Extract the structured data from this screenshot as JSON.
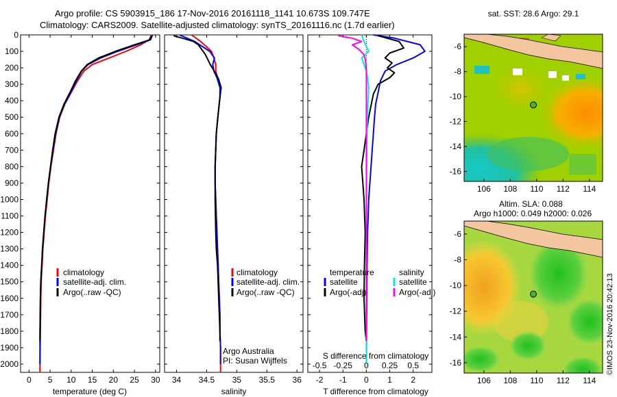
{
  "header": {
    "line1": "Argo profile: CS 5903915_186 17-Nov-2016 20161118_1141 10.673S 109.747E",
    "line2": "Climatology: CARS2009. Satellite-adjusted climatology: synTS_20161116.nc (1.7d earlier)"
  },
  "side_label": "©IMOS 23-Nov-2016 20:42:13",
  "colors": {
    "climatology": "#ff0000",
    "satellite": "#0000ff",
    "argo": "#000000",
    "sat_sal": "#00e5e5",
    "argo_sal": "#ff00ff",
    "land": "#f4c6a0"
  },
  "chart_data": [
    {
      "type": "line",
      "id": "temperature",
      "xlabel": "temperature (deg C)",
      "ylabel": "",
      "xlim": [
        -2,
        31
      ],
      "ylim": [
        2050,
        0
      ],
      "xticks": [
        0,
        5,
        10,
        15,
        20,
        25,
        30
      ],
      "yticks": [
        0,
        100,
        200,
        300,
        400,
        500,
        600,
        700,
        800,
        900,
        1000,
        1100,
        1200,
        1300,
        1400,
        1500,
        1600,
        1700,
        1800,
        1900,
        2000
      ],
      "legend": [
        "climatology",
        "satellite-adj. clim.",
        "Argo(..raw -QC)"
      ],
      "series": [
        {
          "name": "climatology",
          "color": "#ff0000",
          "x": [
            29.0,
            28.5,
            26.5,
            23.0,
            19.0,
            15.0,
            13.0,
            11.5,
            10.0,
            8.5,
            7.3,
            6.4,
            5.8,
            5.2,
            4.7,
            4.3,
            3.9,
            3.6,
            3.3,
            3.1,
            2.9,
            2.8,
            2.7,
            2.6,
            2.6
          ],
          "y": [
            0,
            30,
            60,
            100,
            140,
            180,
            220,
            280,
            350,
            420,
            500,
            600,
            700,
            800,
            900,
            1000,
            1100,
            1200,
            1300,
            1400,
            1500,
            1600,
            1800,
            2000,
            2050
          ]
        },
        {
          "name": "satellite-adj. clim.",
          "color": "#0000ff",
          "x": [
            29.3,
            28.8,
            25.5,
            21.0,
            17.0,
            14.0,
            12.5,
            11.2,
            9.9,
            8.4,
            7.2,
            6.3,
            5.7,
            5.1,
            4.6,
            4.2,
            3.8,
            3.5,
            3.2,
            3.0,
            2.8,
            2.7,
            2.6,
            2.6
          ],
          "y": [
            0,
            30,
            60,
            100,
            140,
            180,
            220,
            280,
            350,
            420,
            500,
            600,
            700,
            800,
            900,
            1000,
            1100,
            1200,
            1300,
            1400,
            1500,
            1600,
            1800,
            2000
          ]
        },
        {
          "name": "Argo(..raw -QC)",
          "color": "#000000",
          "x": [
            29.1,
            28.6,
            25.0,
            20.5,
            16.5,
            13.8,
            12.4,
            11.0,
            9.7,
            8.3,
            7.1,
            6.2,
            5.6,
            5.1,
            4.6,
            4.2,
            3.8,
            3.5,
            3.2,
            3.0,
            2.8,
            2.7,
            2.6
          ],
          "y": [
            5,
            30,
            60,
            100,
            140,
            180,
            220,
            280,
            350,
            420,
            500,
            600,
            700,
            800,
            900,
            1000,
            1100,
            1200,
            1300,
            1400,
            1500,
            1600,
            1860
          ]
        }
      ]
    },
    {
      "type": "line",
      "id": "salinity",
      "xlabel": "salinity",
      "xlim": [
        33.8,
        36.1
      ],
      "ylim": [
        2050,
        0
      ],
      "xticks": [
        34,
        34.5,
        35,
        35.5,
        36
      ],
      "legend": [
        "climatology",
        "satellite-adj. clim.",
        "Argo(..raw -QC)"
      ],
      "note": [
        "Argo Australia",
        "PI: Susan Wijffels"
      ],
      "series": [
        {
          "name": "climatology",
          "color": "#ff0000",
          "x": [
            34.25,
            34.4,
            34.58,
            34.62,
            34.65,
            34.65,
            34.68,
            34.73,
            34.72,
            34.7,
            34.68,
            34.66,
            34.65,
            34.64,
            34.64,
            34.65,
            34.66,
            34.67,
            34.68,
            34.69,
            34.7,
            34.71,
            34.72,
            34.72,
            34.73,
            34.73,
            34.73
          ],
          "y": [
            0,
            40,
            100,
            140,
            180,
            220,
            260,
            320,
            380,
            450,
            520,
            600,
            700,
            800,
            900,
            1000,
            1100,
            1200,
            1300,
            1400,
            1500,
            1600,
            1700,
            1800,
            1900,
            2000,
            2050
          ]
        },
        {
          "name": "satellite-adj. clim.",
          "color": "#0000ff",
          "x": [
            34.05,
            34.3,
            34.55,
            34.63,
            34.6,
            34.62,
            34.67,
            34.72,
            34.72,
            34.7,
            34.68,
            34.66,
            34.65,
            34.64,
            34.64,
            34.65,
            34.66,
            34.67,
            34.68,
            34.69,
            34.7,
            34.71,
            34.72,
            34.72,
            34.73,
            34.73
          ],
          "y": [
            0,
            40,
            100,
            140,
            180,
            220,
            260,
            320,
            380,
            450,
            520,
            600,
            700,
            800,
            900,
            1000,
            1100,
            1200,
            1300,
            1400,
            1500,
            1600,
            1700,
            1800,
            1900,
            2000
          ]
        },
        {
          "name": "Argo(..raw -QC)",
          "color": "#000000",
          "x": [
            33.95,
            34.1,
            34.28,
            34.36,
            34.42,
            34.48,
            34.52,
            34.56,
            34.61,
            34.66,
            34.7,
            34.74,
            34.72,
            34.7,
            34.68,
            34.66,
            34.64,
            34.64,
            34.65,
            34.66,
            34.68,
            34.69,
            34.7,
            34.71,
            34.72,
            34.72,
            34.72
          ],
          "y": [
            5,
            20,
            40,
            60,
            90,
            120,
            150,
            180,
            210,
            240,
            270,
            320,
            380,
            450,
            520,
            600,
            800,
            1000,
            1200,
            1300,
            1400,
            1500,
            1600,
            1700,
            1800,
            1850,
            1860
          ]
        }
      ]
    },
    {
      "type": "line",
      "id": "difference",
      "xlabel": "T difference from climatology",
      "x2label": "S difference from climatology",
      "xlim": [
        -2.5,
        2.8
      ],
      "ylim": [
        2050,
        0
      ],
      "xticks": [
        -2,
        -1,
        0,
        1,
        2
      ],
      "x2ticks": [
        "-0.5",
        "-0.25",
        "0",
        "0.25",
        "0.5"
      ],
      "x2pos": [
        -2,
        -1,
        0,
        1,
        2
      ],
      "legend_title": [
        "temperature",
        "salinity"
      ],
      "legend": [
        "satellite",
        "Argo(-adj)",
        "satellite",
        "Argo(-adj)"
      ],
      "series": [
        {
          "name": "T satellite",
          "color": "#0000ff",
          "x": [
            0.3,
            1.2,
            2.3,
            2.5,
            2.0,
            1.3,
            0.8,
            0.6,
            0.5,
            0.4,
            0.35,
            0.3,
            0.25,
            0.2,
            0.15,
            0.1,
            0.08,
            0.05,
            0.03,
            0.02,
            0.01,
            0.0
          ],
          "y": [
            0,
            20,
            60,
            100,
            140,
            180,
            220,
            280,
            350,
            420,
            500,
            600,
            700,
            800,
            900,
            1000,
            1100,
            1200,
            1400,
            1600,
            1800,
            2000
          ]
        },
        {
          "name": "T Argo(-adj)",
          "color": "#000000",
          "x": [
            0.5,
            1.4,
            1.6,
            1.0,
            0.8,
            1.1,
            0.9,
            1.2,
            1.0,
            0.5,
            0.3,
            0.2,
            0.1,
            0.0,
            -0.1,
            -0.2,
            -0.15,
            -0.1,
            -0.05,
            -0.08,
            -0.1,
            -0.05,
            0.0
          ],
          "y": [
            5,
            40,
            80,
            110,
            140,
            170,
            200,
            230,
            260,
            300,
            360,
            430,
            500,
            600,
            700,
            800,
            900,
            1000,
            1200,
            1400,
            1600,
            1800,
            1860
          ]
        },
        {
          "name": "S satellite",
          "color": "#00e5e5",
          "x": [
            -0.2,
            -0.1,
            0.1,
            -0.2,
            -0.1,
            0.0,
            0.05,
            0.1,
            0.08,
            0.05,
            0.04,
            0.03,
            0.02,
            0.01,
            0.0,
            0.0,
            0.0,
            0.0,
            0.0,
            0.0
          ],
          "y": [
            0,
            40,
            100,
            140,
            180,
            220,
            260,
            320,
            380,
            450,
            520,
            600,
            700,
            800,
            900,
            1000,
            1200,
            1400,
            1600,
            2000
          ]
        },
        {
          "name": "S Argo(-adj)",
          "color": "#ff00ff",
          "x": [
            -1.2,
            -0.6,
            -0.2,
            -0.6,
            -0.3,
            -0.1,
            -0.05,
            -0.02,
            0.0,
            0.0,
            0.0,
            0.0
          ],
          "y": [
            5,
            20,
            40,
            60,
            90,
            120,
            150,
            180,
            220,
            300,
            500,
            1860
          ]
        }
      ]
    },
    {
      "type": "heatmap",
      "id": "sst_map",
      "title": "sat. SST: 28.6 Argo: 29.1",
      "xlim": [
        104.5,
        115
      ],
      "ylim": [
        -16.8,
        -5
      ],
      "xticks": [
        106,
        108,
        110,
        112,
        114
      ],
      "yticks": [
        -6,
        -8,
        -10,
        -12,
        -14,
        -16
      ],
      "marker": {
        "lon": 109.75,
        "lat": -10.67
      }
    },
    {
      "type": "heatmap",
      "id": "sla_map",
      "title1": "Altim. SLA: 0.088",
      "title2": "Argo h1000: 0.049 h2000: 0.026",
      "xlim": [
        104.5,
        115
      ],
      "ylim": [
        -16.8,
        -5
      ],
      "xticks": [
        106,
        108,
        110,
        112,
        114
      ],
      "yticks": [
        -6,
        -8,
        -10,
        -12,
        -14,
        -16
      ],
      "marker": {
        "lon": 109.75,
        "lat": -10.67
      }
    }
  ]
}
